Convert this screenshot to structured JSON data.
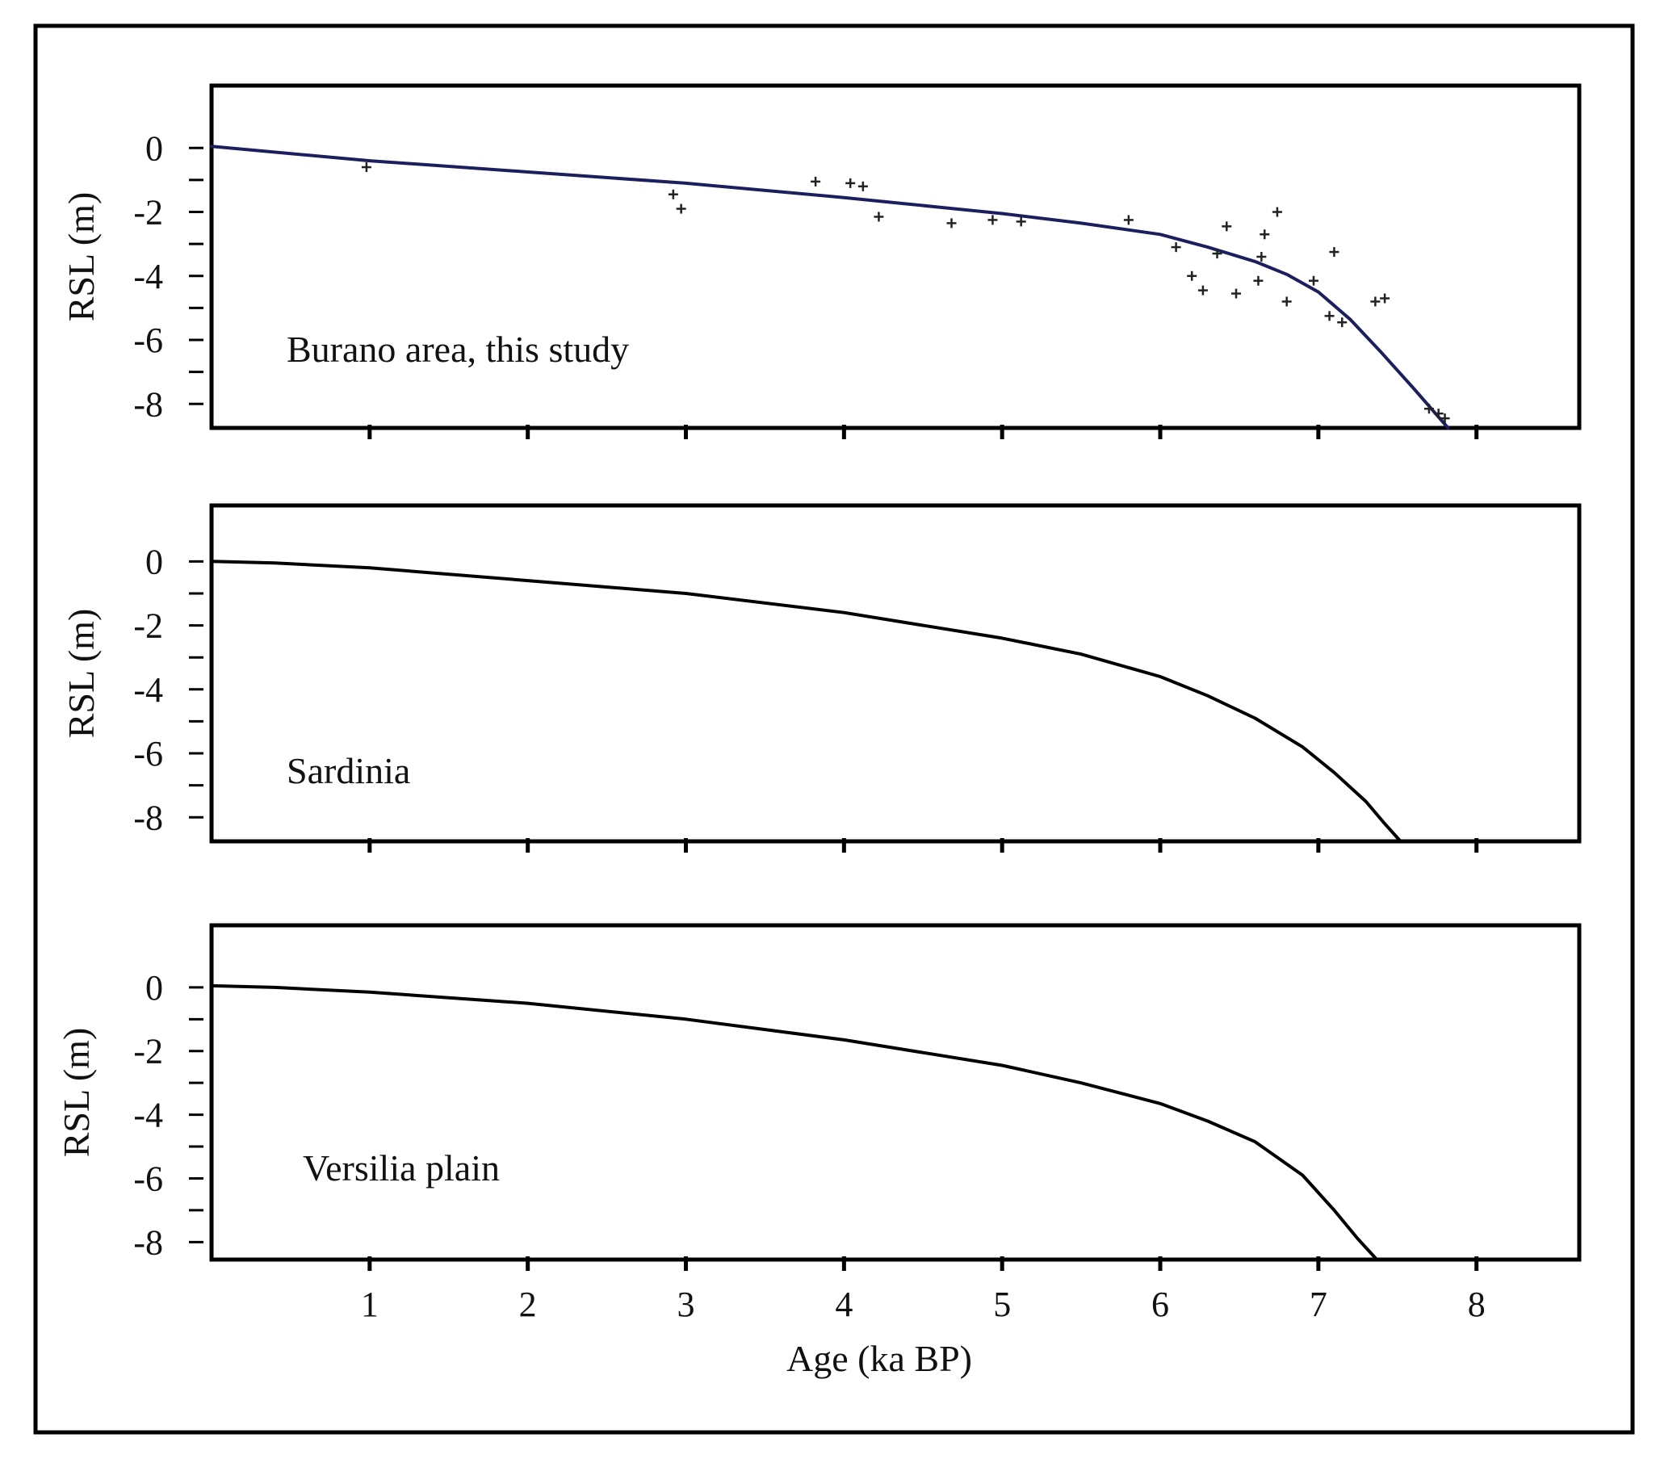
{
  "chart_data": [
    {
      "type": "line",
      "panel_label": "Burano area, this study",
      "ylabel": "RSL (m)",
      "xlabel": "",
      "xlim": [
        0,
        8.65
      ],
      "ylim": [
        -8.75,
        1.95
      ],
      "yticks": [
        0,
        -2,
        -4,
        -6,
        -8
      ],
      "xticks": [
        1,
        2,
        3,
        4,
        5,
        6,
        7,
        8
      ],
      "grid": false,
      "colors": {
        "curve": "#1b1f5e",
        "points": "#222222"
      },
      "series": [
        {
          "style": "line",
          "x": [
            0,
            1,
            2,
            3,
            4,
            5,
            5.5,
            6,
            6.3,
            6.6,
            6.8,
            7,
            7.2,
            7.4,
            7.6,
            7.82
          ],
          "y": [
            0.05,
            -0.4,
            -0.75,
            -1.1,
            -1.55,
            -2.05,
            -2.35,
            -2.7,
            -3.1,
            -3.55,
            -3.95,
            -4.5,
            -5.35,
            -6.4,
            -7.5,
            -8.75
          ]
        },
        {
          "style": "markers",
          "marker": "+",
          "x": [
            0.98,
            2.92,
            2.97,
            3.82,
            4.04,
            4.12,
            4.22,
            4.68,
            4.94,
            5.12,
            5.8,
            6.1,
            6.2,
            6.27,
            6.36,
            6.42,
            6.48,
            6.62,
            6.66,
            6.64,
            6.74,
            6.8,
            6.97,
            7.07,
            7.1,
            7.15,
            7.36,
            7.42,
            7.7,
            7.76,
            7.8
          ],
          "y": [
            -0.6,
            -1.45,
            -1.9,
            -1.05,
            -1.1,
            -1.2,
            -2.15,
            -2.35,
            -2.25,
            -2.3,
            -2.25,
            -3.1,
            -4.0,
            -4.45,
            -3.3,
            -2.45,
            -4.55,
            -4.15,
            -2.7,
            -3.4,
            -2.0,
            -4.8,
            -4.15,
            -5.25,
            -3.25,
            -5.45,
            -4.8,
            -4.7,
            -8.15,
            -8.3,
            -8.45
          ]
        }
      ]
    },
    {
      "type": "line",
      "panel_label": "Sardinia",
      "ylabel": "RSL (m)",
      "xlabel": "",
      "xlim": [
        0,
        8.65
      ],
      "ylim": [
        -8.75,
        1.75
      ],
      "yticks": [
        0,
        -2,
        -4,
        -6,
        -8
      ],
      "xticks": [
        1,
        2,
        3,
        4,
        5,
        6,
        7,
        8
      ],
      "grid": false,
      "colors": {
        "curve": "#000000"
      },
      "series": [
        {
          "style": "line",
          "x": [
            0,
            0.4,
            1,
            2,
            3,
            4,
            5,
            5.5,
            6,
            6.3,
            6.6,
            6.9,
            7.1,
            7.3,
            7.42,
            7.52
          ],
          "y": [
            0,
            -0.05,
            -0.2,
            -0.6,
            -1.0,
            -1.6,
            -2.4,
            -2.9,
            -3.6,
            -4.2,
            -4.9,
            -5.8,
            -6.6,
            -7.5,
            -8.2,
            -8.75
          ]
        }
      ]
    },
    {
      "type": "line",
      "panel_label": "Versilia plain",
      "ylabel": "RSL (m)",
      "xlabel": "Age (ka BP)",
      "xlim": [
        0,
        8.65
      ],
      "ylim": [
        -8.55,
        1.95
      ],
      "yticks": [
        0,
        -2,
        -4,
        -6,
        -8
      ],
      "xticks": [
        1,
        2,
        3,
        4,
        5,
        6,
        7,
        8
      ],
      "grid": false,
      "colors": {
        "curve": "#000000"
      },
      "series": [
        {
          "style": "line",
          "x": [
            0,
            0.4,
            1,
            2,
            3,
            4,
            5,
            5.5,
            6,
            6.3,
            6.6,
            6.9,
            7.1,
            7.25,
            7.37
          ],
          "y": [
            0.05,
            0,
            -0.15,
            -0.5,
            -1.0,
            -1.65,
            -2.45,
            -3.0,
            -3.65,
            -4.2,
            -4.85,
            -5.9,
            -7.0,
            -7.9,
            -8.55
          ]
        }
      ]
    }
  ]
}
